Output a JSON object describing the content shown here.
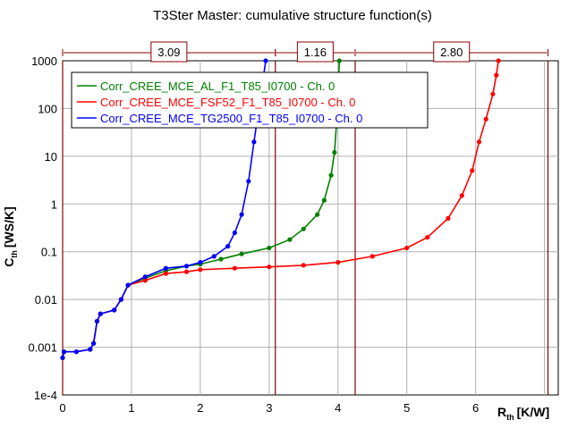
{
  "chart_data": {
    "type": "line",
    "title": "T3Ster Master: cumulative structure function(s)",
    "xlabel": "R",
    "xlabel_sub": "th",
    "xlabel_unit": "[K/W]",
    "ylabel": "C",
    "ylabel_sub": "th",
    "ylabel_unit": "[WS/K]",
    "xlim": [
      0,
      7.2
    ],
    "ylim": [
      0.0001,
      1000
    ],
    "yscale": "log",
    "x_ticks": [
      "0",
      "1",
      "2",
      "3",
      "4",
      "5",
      "6"
    ],
    "y_ticks": [
      "1e-4",
      "0.001",
      "0.01",
      "0.1",
      "1",
      "10",
      "100",
      "1000"
    ],
    "grid": true,
    "legend_position": "top-left",
    "series": [
      {
        "name": "Corr_CREE_MCE_AL_F1_T85_I0700 - Ch. 0",
        "color": "#008000",
        "points": [
          [
            0,
            0.0006
          ],
          [
            0.02,
            0.0008
          ],
          [
            0.2,
            0.0008
          ],
          [
            0.4,
            0.0009
          ],
          [
            0.45,
            0.0012
          ],
          [
            0.5,
            0.0035
          ],
          [
            0.55,
            0.005
          ],
          [
            0.75,
            0.006
          ],
          [
            0.85,
            0.01
          ],
          [
            0.95,
            0.02
          ],
          [
            1.2,
            0.028
          ],
          [
            1.5,
            0.04
          ],
          [
            1.8,
            0.05
          ],
          [
            2.0,
            0.055
          ],
          [
            2.3,
            0.07
          ],
          [
            2.6,
            0.09
          ],
          [
            3.0,
            0.12
          ],
          [
            3.3,
            0.18
          ],
          [
            3.5,
            0.3
          ],
          [
            3.7,
            0.6
          ],
          [
            3.8,
            1.2
          ],
          [
            3.9,
            4
          ],
          [
            3.95,
            12
          ],
          [
            3.98,
            50
          ],
          [
            4.0,
            200
          ],
          [
            4.02,
            1000
          ]
        ]
      },
      {
        "name": "Corr_CREE_MCE_FSF52_F1_T85_I0700 - Ch. 0",
        "color": "#ff0000",
        "points": [
          [
            0,
            0.0006
          ],
          [
            0.02,
            0.0008
          ],
          [
            0.2,
            0.0008
          ],
          [
            0.4,
            0.0009
          ],
          [
            0.45,
            0.0012
          ],
          [
            0.5,
            0.0035
          ],
          [
            0.55,
            0.005
          ],
          [
            0.75,
            0.006
          ],
          [
            0.85,
            0.01
          ],
          [
            0.95,
            0.02
          ],
          [
            1.2,
            0.025
          ],
          [
            1.5,
            0.035
          ],
          [
            1.8,
            0.038
          ],
          [
            2.0,
            0.042
          ],
          [
            2.5,
            0.045
          ],
          [
            3.0,
            0.048
          ],
          [
            3.5,
            0.052
          ],
          [
            4.0,
            0.06
          ],
          [
            4.5,
            0.08
          ],
          [
            5.0,
            0.12
          ],
          [
            5.3,
            0.2
          ],
          [
            5.6,
            0.5
          ],
          [
            5.8,
            1.5
          ],
          [
            5.95,
            5
          ],
          [
            6.05,
            20
          ],
          [
            6.15,
            60
          ],
          [
            6.25,
            200
          ],
          [
            6.3,
            500
          ],
          [
            6.33,
            1000
          ]
        ]
      },
      {
        "name": "Corr_CREE_MCE_TG2500_F1_T85_I0700 - Ch. 0",
        "color": "#0000ff",
        "points": [
          [
            0,
            0.0006
          ],
          [
            0.02,
            0.0008
          ],
          [
            0.2,
            0.0008
          ],
          [
            0.4,
            0.0009
          ],
          [
            0.45,
            0.0012
          ],
          [
            0.5,
            0.0035
          ],
          [
            0.55,
            0.005
          ],
          [
            0.75,
            0.006
          ],
          [
            0.85,
            0.01
          ],
          [
            0.95,
            0.02
          ],
          [
            1.2,
            0.03
          ],
          [
            1.5,
            0.045
          ],
          [
            1.8,
            0.05
          ],
          [
            2.0,
            0.06
          ],
          [
            2.2,
            0.08
          ],
          [
            2.4,
            0.13
          ],
          [
            2.5,
            0.25
          ],
          [
            2.6,
            0.6
          ],
          [
            2.7,
            3
          ],
          [
            2.78,
            20
          ],
          [
            2.85,
            100
          ],
          [
            2.9,
            300
          ],
          [
            2.95,
            1000
          ]
        ]
      }
    ],
    "markers": [
      {
        "x": 0.0,
        "color": "#8b0000"
      },
      {
        "x": 3.09,
        "color": "#8b0000"
      },
      {
        "x": 4.25,
        "color": "#8b0000"
      },
      {
        "x": 7.05,
        "color": "#8b0000"
      }
    ],
    "annotations": [
      {
        "text": "3.09",
        "from": 0.0,
        "to": 3.09
      },
      {
        "text": "1.16",
        "from": 3.09,
        "to": 4.25
      },
      {
        "text": "2.80",
        "from": 4.25,
        "to": 7.05
      }
    ]
  }
}
